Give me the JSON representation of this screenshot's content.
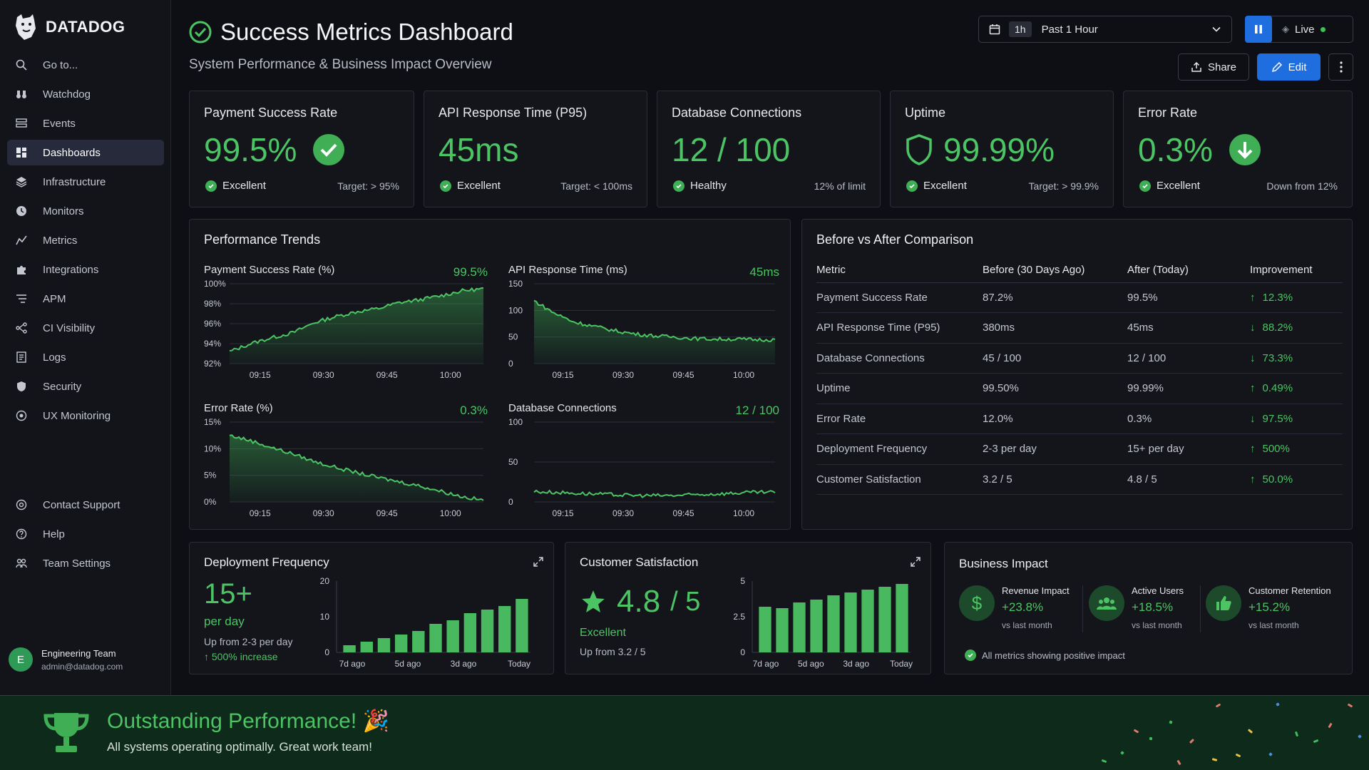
{
  "brand": "DATADOG",
  "sidebar": {
    "items": [
      {
        "label": "Go to...",
        "icon": "search-icon"
      },
      {
        "label": "Watchdog",
        "icon": "binoculars-icon"
      },
      {
        "label": "Events",
        "icon": "events-icon"
      },
      {
        "label": "Dashboards",
        "icon": "dashboard-icon",
        "active": true
      },
      {
        "label": "Infrastructure",
        "icon": "infrastructure-icon"
      },
      {
        "label": "Monitors",
        "icon": "monitor-icon"
      },
      {
        "label": "Metrics",
        "icon": "metrics-icon"
      },
      {
        "label": "Integrations",
        "icon": "puzzle-icon"
      },
      {
        "label": "APM",
        "icon": "apm-icon"
      },
      {
        "label": "CI Visibility",
        "icon": "ci-icon"
      },
      {
        "label": "Logs",
        "icon": "logs-icon"
      },
      {
        "label": "Security",
        "icon": "shield-icon"
      },
      {
        "label": "UX Monitoring",
        "icon": "ux-icon"
      }
    ],
    "bottom": [
      {
        "label": "Contact Support",
        "icon": "support-icon"
      },
      {
        "label": "Help",
        "icon": "help-icon"
      },
      {
        "label": "Team Settings",
        "icon": "team-icon"
      }
    ],
    "user": {
      "initial": "E",
      "name": "Engineering Team",
      "email": "admin@datadog.com"
    }
  },
  "header": {
    "title": "Success Metrics Dashboard",
    "subtitle": "System Performance & Business Impact Overview",
    "time_pill": "1h",
    "time_label": "Past 1 Hour",
    "live_label": "Live",
    "share_label": "Share",
    "edit_label": "Edit"
  },
  "kpis": [
    {
      "title": "Payment Success Rate",
      "value": "99.5%",
      "status": "Excellent",
      "right": "Target: > 95%"
    },
    {
      "title": "API Response Time (P95)",
      "value": "45ms",
      "status": "Excellent",
      "right": "Target: < 100ms"
    },
    {
      "title": "Database Connections",
      "value": "12 / 100",
      "status": "Healthy",
      "right": "12% of limit"
    },
    {
      "title": "Uptime",
      "value": "99.99%",
      "status": "Excellent",
      "right": "Target: > 99.9%"
    },
    {
      "title": "Error Rate",
      "value": "0.3%",
      "status": "Excellent",
      "right": "Down from 12%"
    }
  ],
  "trends": {
    "title": "Performance Trends",
    "charts": [
      {
        "title": "Payment Success Rate (%)",
        "value": "99.5%"
      },
      {
        "title": "API Response Time (ms)",
        "value": "45ms"
      },
      {
        "title": "Error Rate (%)",
        "value": "0.3%"
      },
      {
        "title": "Database Connections",
        "value": "12 / 100"
      }
    ]
  },
  "comparison": {
    "title": "Before vs After Comparison",
    "headers": [
      "Metric",
      "Before (30 Days Ago)",
      "After (Today)",
      "Improvement"
    ],
    "rows": [
      {
        "metric": "Payment Success Rate",
        "before": "87.2%",
        "after": "99.5%",
        "improvement": "12.3%",
        "dir": "up"
      },
      {
        "metric": "API Response Time (P95)",
        "before": "380ms",
        "after": "45ms",
        "improvement": "88.2%",
        "dir": "down"
      },
      {
        "metric": "Database Connections",
        "before": "45 / 100",
        "after": "12 / 100",
        "improvement": "73.3%",
        "dir": "down"
      },
      {
        "metric": "Uptime",
        "before": "99.50%",
        "after": "99.99%",
        "improvement": "0.49%",
        "dir": "up"
      },
      {
        "metric": "Error Rate",
        "before": "12.0%",
        "after": "0.3%",
        "improvement": "97.5%",
        "dir": "down"
      },
      {
        "metric": "Deployment Frequency",
        "before": "2-3 per day",
        "after": "15+ per day",
        "improvement": "500%",
        "dir": "up"
      },
      {
        "metric": "Customer Satisfaction",
        "before": "3.2 / 5",
        "after": "4.8 / 5",
        "improvement": "50.0%",
        "dir": "up"
      }
    ]
  },
  "deployment": {
    "title": "Deployment Frequency",
    "value": "15+",
    "unit": "per day",
    "from": "Up from 2-3 per day",
    "increase": "500% increase"
  },
  "satisfaction": {
    "title": "Customer Satisfaction",
    "value": "4.8",
    "denom": "/ 5",
    "label": "Excellent",
    "from": "Up from 3.2 / 5"
  },
  "business": {
    "title": "Business Impact",
    "items": [
      {
        "label": "Revenue Impact",
        "value": "+23.8%",
        "sub": "vs last month",
        "icon": "dollar-icon"
      },
      {
        "label": "Active Users",
        "value": "+18.5%",
        "sub": "vs last month",
        "icon": "users-icon"
      },
      {
        "label": "Customer Retention",
        "value": "+15.2%",
        "sub": "vs last month",
        "icon": "thumbs-up-icon"
      }
    ],
    "footer": "All metrics showing positive impact"
  },
  "banner": {
    "title": "Outstanding Performance! 🎉",
    "subtitle": "All systems operating optimally. Great work team!"
  },
  "colors": {
    "accent": "#4cc464",
    "primary": "#1f6ee0",
    "background": "#0d0f14",
    "card": "#13151b"
  },
  "chart_data": [
    {
      "type": "area",
      "title": "Payment Success Rate (%)",
      "x": [
        "09:10",
        "09:15",
        "09:20",
        "09:25",
        "09:30",
        "09:35",
        "09:40",
        "09:45",
        "09:50",
        "09:55",
        "10:00",
        "10:05",
        "10:10"
      ],
      "values": [
        93.2,
        94.0,
        94.6,
        95.1,
        96.1,
        96.7,
        97.2,
        97.5,
        98.1,
        98.4,
        98.8,
        99.3,
        99.5
      ],
      "ylim": [
        92,
        100
      ],
      "yticks": [
        "100%",
        "98%",
        "96%",
        "94%",
        "92%"
      ],
      "xticks": [
        "09:15",
        "09:30",
        "09:45",
        "10:00"
      ]
    },
    {
      "type": "area",
      "title": "API Response Time (ms)",
      "x": [
        "09:10",
        "09:15",
        "09:20",
        "09:25",
        "09:30",
        "09:35",
        "09:40",
        "09:45",
        "09:50",
        "09:55",
        "10:00",
        "10:05",
        "10:10"
      ],
      "values": [
        118,
        95,
        78,
        70,
        62,
        56,
        52,
        50,
        47,
        46,
        46,
        45,
        45
      ],
      "ylim": [
        0,
        150
      ],
      "yticks": [
        "150",
        "100",
        "50",
        "0"
      ],
      "xticks": [
        "09:15",
        "09:30",
        "09:45",
        "10:00"
      ]
    },
    {
      "type": "area",
      "title": "Error Rate (%)",
      "x": [
        "09:10",
        "09:15",
        "09:20",
        "09:25",
        "09:30",
        "09:35",
        "09:40",
        "09:45",
        "09:50",
        "09:55",
        "10:00",
        "10:05",
        "10:10"
      ],
      "values": [
        12.5,
        11.5,
        10.2,
        9.0,
        7.6,
        6.5,
        5.5,
        4.6,
        3.8,
        3.0,
        2.0,
        1.0,
        0.3
      ],
      "ylim": [
        0,
        15
      ],
      "yticks": [
        "15%",
        "10%",
        "5%",
        "0%"
      ],
      "xticks": [
        "09:15",
        "09:30",
        "09:45",
        "10:00"
      ]
    },
    {
      "type": "line",
      "title": "Database Connections",
      "x": [
        "09:10",
        "09:15",
        "09:20",
        "09:25",
        "09:30",
        "09:35",
        "09:40",
        "09:45",
        "09:50",
        "09:55",
        "10:00",
        "10:05",
        "10:10"
      ],
      "values": [
        13,
        12,
        11,
        10,
        9,
        8,
        8,
        8,
        9,
        10,
        11,
        12,
        12
      ],
      "ylim": [
        0,
        100
      ],
      "yticks": [
        "100",
        "50",
        "0"
      ],
      "xticks": [
        "09:15",
        "09:30",
        "09:45",
        "10:00"
      ]
    },
    {
      "type": "bar",
      "title": "Deployment Frequency",
      "values": [
        2,
        3,
        4,
        5,
        6,
        8,
        9,
        11,
        12,
        13,
        15
      ],
      "ylim": [
        0,
        20
      ],
      "yticks": [
        "20",
        "10",
        "0"
      ],
      "xticks": [
        "7d ago",
        "5d ago",
        "3d ago",
        "Today"
      ]
    },
    {
      "type": "bar",
      "title": "Customer Satisfaction",
      "values": [
        3.2,
        3.1,
        3.5,
        3.7,
        4.0,
        4.2,
        4.4,
        4.6,
        4.8
      ],
      "ylim": [
        0,
        5
      ],
      "yticks": [
        "5",
        "2.5",
        "0"
      ],
      "xticks": [
        "7d ago",
        "5d ago",
        "3d ago",
        "Today"
      ]
    }
  ]
}
